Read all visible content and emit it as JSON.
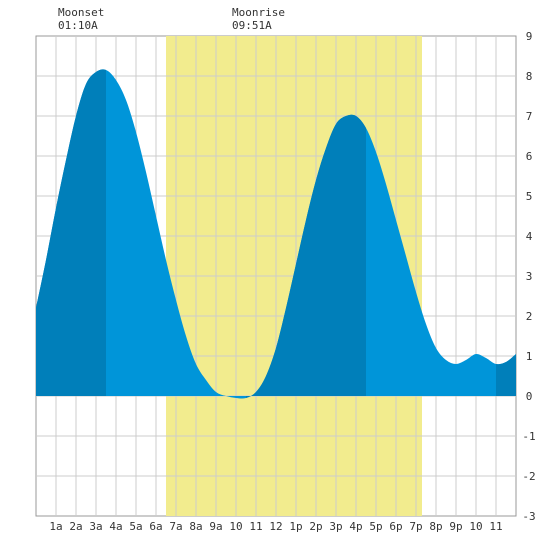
{
  "chart_data": {
    "type": "area",
    "title": "",
    "xlabel": "",
    "ylabel": "",
    "xlim": [
      0,
      24
    ],
    "ylim": [
      -3,
      9
    ],
    "grid": true,
    "x_tick_labels": [
      "1a",
      "2a",
      "3a",
      "4a",
      "5a",
      "6a",
      "7a",
      "8a",
      "9a",
      "10",
      "11",
      "12",
      "1p",
      "2p",
      "3p",
      "4p",
      "5p",
      "6p",
      "7p",
      "8p",
      "9p",
      "10",
      "11"
    ],
    "y_tick_values": [
      -3,
      -2,
      -1,
      0,
      1,
      2,
      3,
      4,
      5,
      6,
      7,
      8,
      9
    ],
    "annotations": [
      {
        "label": "Moonset",
        "time": "01:10A"
      },
      {
        "label": "Moonrise",
        "time": "09:51A"
      }
    ],
    "daylight": {
      "start_hour": 6.5,
      "end_hour": 19.3
    },
    "tide_series": {
      "x": [
        0,
        0.5,
        1,
        1.5,
        2,
        2.5,
        3,
        3.5,
        4,
        4.5,
        5,
        5.5,
        6,
        6.5,
        7,
        7.5,
        8,
        8.5,
        9,
        9.5,
        10,
        10.5,
        11,
        11.5,
        12,
        12.5,
        13,
        13.5,
        14,
        14.5,
        15,
        15.5,
        16,
        16.5,
        17,
        17.5,
        18,
        18.5,
        19,
        19.5,
        20,
        20.5,
        21,
        21.5,
        22,
        22.5,
        23,
        23.5,
        24
      ],
      "y": [
        2.2,
        3.4,
        4.7,
        5.9,
        7.0,
        7.8,
        8.1,
        8.15,
        7.9,
        7.4,
        6.6,
        5.6,
        4.5,
        3.4,
        2.4,
        1.5,
        0.8,
        0.4,
        0.1,
        0.0,
        -0.05,
        -0.05,
        0.1,
        0.5,
        1.2,
        2.2,
        3.3,
        4.4,
        5.4,
        6.2,
        6.8,
        7.0,
        7.0,
        6.7,
        6.1,
        5.3,
        4.4,
        3.5,
        2.6,
        1.8,
        1.2,
        0.9,
        0.8,
        0.9,
        1.05,
        0.95,
        0.8,
        0.85,
        1.05
      ]
    },
    "dark_shade_intervals": [
      [
        0,
        3.5
      ],
      [
        10.5,
        16.5
      ],
      [
        23,
        24
      ]
    ],
    "colors": {
      "tide": "#0095d9",
      "tide_dark": "#007fba",
      "daylight": "#f2ec8e",
      "grid": "#cccccc",
      "text": "#333333"
    }
  }
}
